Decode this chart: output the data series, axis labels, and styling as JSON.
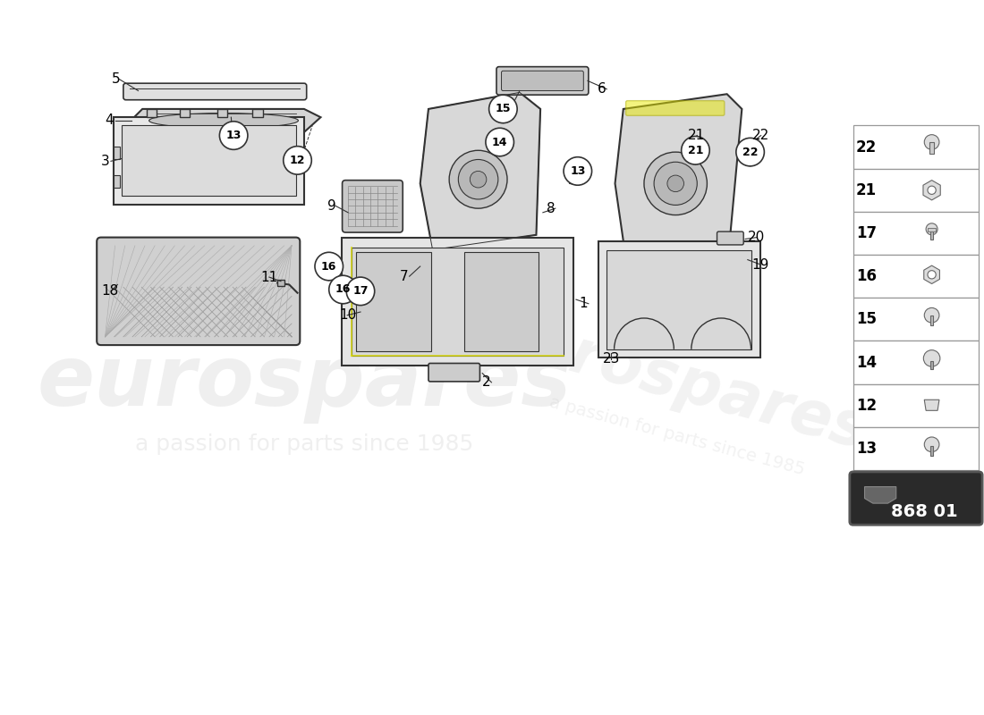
{
  "bg_color": "#ffffff",
  "diagram_color": "#333333",
  "circle_color": "#ffffff",
  "circle_edge": "#333333",
  "label_color": "#000000",
  "sidebar_items": [
    {
      "num": 22,
      "row": 0
    },
    {
      "num": 21,
      "row": 1
    },
    {
      "num": 17,
      "row": 2
    },
    {
      "num": 16,
      "row": 3
    },
    {
      "num": 15,
      "row": 4
    },
    {
      "num": 14,
      "row": 5
    },
    {
      "num": 12,
      "row": 6
    },
    {
      "num": 13,
      "row": 7
    }
  ],
  "code_box": "868 01",
  "watermark1": "eurospares",
  "watermark2": "a passion for parts since 1985"
}
